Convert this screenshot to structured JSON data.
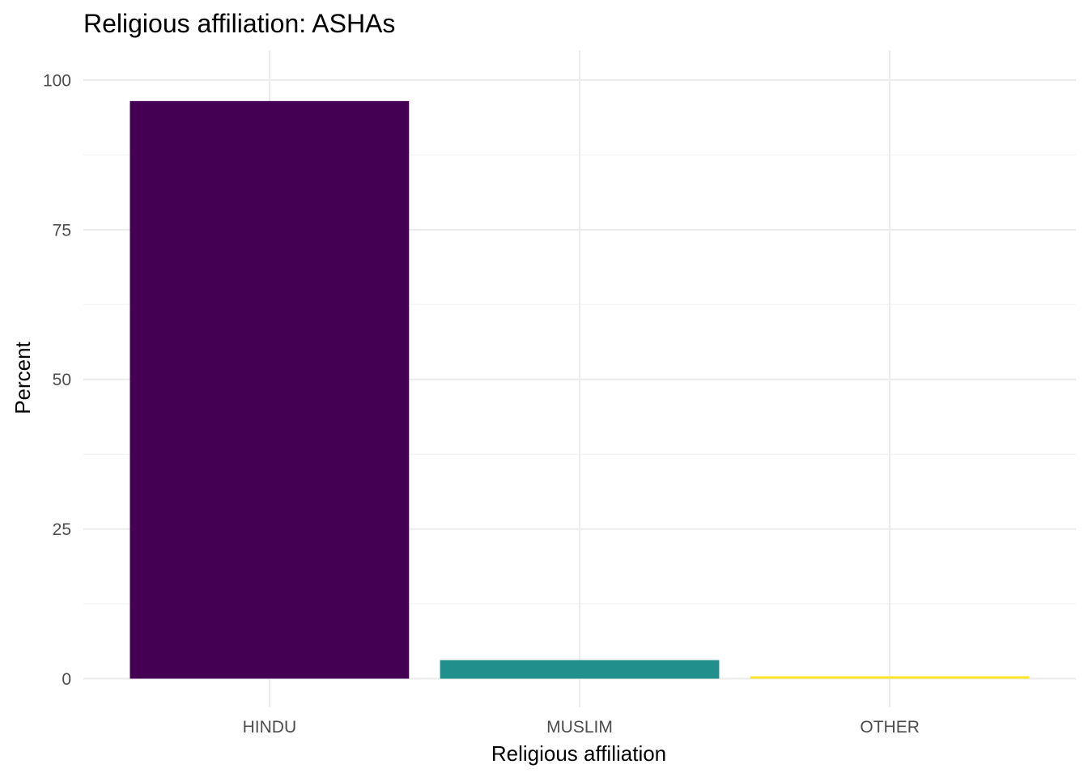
{
  "chart_data": {
    "type": "bar",
    "title": "Religious affiliation: ASHAs",
    "xlabel": "Religious affiliation",
    "ylabel": "Percent",
    "categories": [
      "HINDU",
      "MUSLIM",
      "OTHER"
    ],
    "values": [
      96.5,
      3.1,
      0.4
    ],
    "colors": [
      "#440154",
      "#21908C",
      "#FDE725"
    ],
    "ylim": [
      -4.8,
      105
    ],
    "yticks": [
      0,
      25,
      50,
      75,
      100
    ],
    "ytick_labels": [
      "0",
      "25",
      "50",
      "75",
      "100"
    ],
    "grid": true,
    "legend": "none"
  }
}
